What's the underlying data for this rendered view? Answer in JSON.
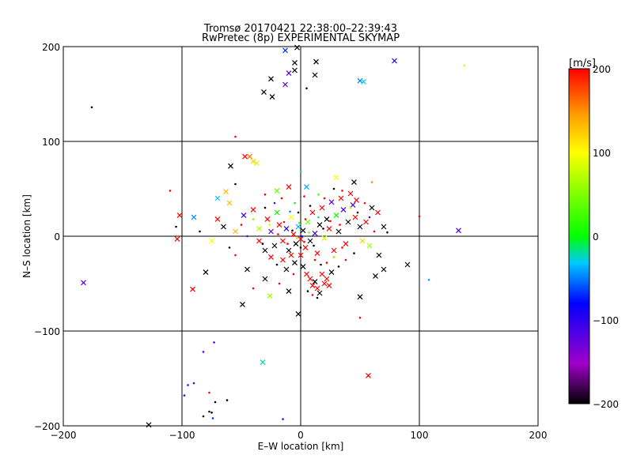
{
  "chart_data": {
    "type": "scatter",
    "title": "Tromsø 20170421 22:38:00–22:39:43",
    "subtitle": "RwPretec (8p) EXPERIMENTAL SKYMAP",
    "xlabel": "E–W location [km]",
    "ylabel": "N–S location [km]",
    "xlim": [
      -200,
      200
    ],
    "ylim": [
      -200,
      200
    ],
    "xticks": [
      -200,
      -100,
      0,
      100,
      200
    ],
    "yticks": [
      -200,
      -100,
      0,
      100,
      200
    ],
    "grid": true,
    "colorbar": {
      "label": "[m/s]",
      "min": -200,
      "max": 200,
      "ticks": [
        200,
        100,
        0,
        -100,
        -200
      ],
      "colormap": [
        "#000000",
        "#a000c8",
        "#0000ff",
        "#00c8ff",
        "#00ff00",
        "#ffff00",
        "#ffa000",
        "#ff0000"
      ]
    },
    "points": [
      {
        "x": 13,
        "y": 184,
        "v": -200,
        "m": "x"
      },
      {
        "x": -3,
        "y": 199,
        "v": -200,
        "m": "x"
      },
      {
        "x": -5,
        "y": 183,
        "v": -200,
        "m": "x"
      },
      {
        "x": -10,
        "y": 172,
        "v": -120,
        "m": "x"
      },
      {
        "x": -5,
        "y": 175,
        "v": -200,
        "m": "x"
      },
      {
        "x": 12,
        "y": 170,
        "v": -200,
        "m": "x"
      },
      {
        "x": -25,
        "y": 166,
        "v": -200,
        "m": "x"
      },
      {
        "x": -13,
        "y": 160,
        "v": -120,
        "m": "x"
      },
      {
        "x": -31,
        "y": 152,
        "v": -200,
        "m": "x"
      },
      {
        "x": -24,
        "y": 147,
        "v": -200,
        "m": "x"
      },
      {
        "x": 5,
        "y": 156,
        "v": -200,
        "m": "d"
      },
      {
        "x": -13,
        "y": 196,
        "v": -70,
        "m": "x"
      },
      {
        "x": 79,
        "y": 185,
        "v": -90,
        "m": "x"
      },
      {
        "x": 50,
        "y": 164,
        "v": -50,
        "m": "x"
      },
      {
        "x": 53,
        "y": 163,
        "v": -30,
        "m": "x"
      },
      {
        "x": 138,
        "y": 180,
        "v": 110,
        "m": "d"
      },
      {
        "x": -176,
        "y": 136,
        "v": -200,
        "m": "d"
      },
      {
        "x": -55,
        "y": 105,
        "v": 200,
        "m": "d"
      },
      {
        "x": -47,
        "y": 84,
        "v": 200,
        "m": "x"
      },
      {
        "x": -43,
        "y": 84,
        "v": 160,
        "m": "x"
      },
      {
        "x": -40,
        "y": 79,
        "v": 120,
        "m": "x"
      },
      {
        "x": -37,
        "y": 77,
        "v": 80,
        "m": "x"
      },
      {
        "x": -59,
        "y": 74,
        "v": -200,
        "m": "x"
      },
      {
        "x": -110,
        "y": 48,
        "v": 200,
        "m": "d"
      },
      {
        "x": -102,
        "y": 22,
        "v": 200,
        "m": "x"
      },
      {
        "x": -104,
        "y": -3,
        "v": 200,
        "m": "x"
      },
      {
        "x": 100,
        "y": 21,
        "v": 200,
        "m": "d"
      },
      {
        "x": 133,
        "y": 6,
        "v": -110,
        "m": "x"
      },
      {
        "x": 90,
        "y": -30,
        "v": -200,
        "m": "x"
      },
      {
        "x": 108,
        "y": -46,
        "v": -40,
        "m": "d"
      },
      {
        "x": -183,
        "y": -49,
        "v": -120,
        "m": "x"
      },
      {
        "x": -91,
        "y": -56,
        "v": 200,
        "m": "x"
      },
      {
        "x": -49,
        "y": -72,
        "v": -200,
        "m": "x"
      },
      {
        "x": -26,
        "y": -63,
        "v": 60,
        "m": "x"
      },
      {
        "x": 50,
        "y": -64,
        "v": -200,
        "m": "x"
      },
      {
        "x": 50,
        "y": -86,
        "v": 200,
        "m": "d"
      },
      {
        "x": -2,
        "y": -82,
        "v": -200,
        "m": "x"
      },
      {
        "x": -32,
        "y": -133,
        "v": -20,
        "m": "x"
      },
      {
        "x": 57,
        "y": -147,
        "v": 200,
        "m": "x"
      },
      {
        "x": -73,
        "y": -112,
        "v": -110,
        "m": "d"
      },
      {
        "x": -82,
        "y": -122,
        "v": -110,
        "m": "d"
      },
      {
        "x": -95,
        "y": -157,
        "v": -110,
        "m": "d"
      },
      {
        "x": -90,
        "y": -155,
        "v": -110,
        "m": "d"
      },
      {
        "x": -98,
        "y": -168,
        "v": -110,
        "m": "d"
      },
      {
        "x": -77,
        "y": -165,
        "v": 200,
        "m": "d"
      },
      {
        "x": -72,
        "y": -175,
        "v": -200,
        "m": "d"
      },
      {
        "x": -62,
        "y": -173,
        "v": -200,
        "m": "d"
      },
      {
        "x": -77,
        "y": -185,
        "v": -200,
        "m": "d"
      },
      {
        "x": -82,
        "y": -190,
        "v": -200,
        "m": "d"
      },
      {
        "x": -74,
        "y": -192,
        "v": -70,
        "m": "d"
      },
      {
        "x": -75,
        "y": -186,
        "v": -200,
        "m": "d"
      },
      {
        "x": -15,
        "y": -193,
        "v": -120,
        "m": "d"
      },
      {
        "x": -128,
        "y": -199,
        "v": -200,
        "m": "x"
      },
      {
        "x": -60,
        "y": 35,
        "v": 130,
        "m": "x"
      },
      {
        "x": -63,
        "y": 47,
        "v": 130,
        "m": "x"
      },
      {
        "x": -70,
        "y": 40,
        "v": -30,
        "m": "x"
      },
      {
        "x": -55,
        "y": 55,
        "v": -200,
        "m": "d"
      },
      {
        "x": -30,
        "y": 44,
        "v": 200,
        "m": "d"
      },
      {
        "x": -20,
        "y": 48,
        "v": 40,
        "m": "x"
      },
      {
        "x": -10,
        "y": 52,
        "v": 200,
        "m": "x"
      },
      {
        "x": 5,
        "y": 52,
        "v": -40,
        "m": "x"
      },
      {
        "x": 30,
        "y": 62,
        "v": 100,
        "m": "x"
      },
      {
        "x": 45,
        "y": 57,
        "v": -200,
        "m": "x"
      },
      {
        "x": 60,
        "y": 57,
        "v": 150,
        "m": "d"
      },
      {
        "x": 47,
        "y": 38,
        "v": 200,
        "m": "x"
      },
      {
        "x": 60,
        "y": 30,
        "v": -200,
        "m": "x"
      },
      {
        "x": 70,
        "y": 10,
        "v": -200,
        "m": "x"
      },
      {
        "x": 65,
        "y": 25,
        "v": 200,
        "m": "x"
      },
      {
        "x": 73,
        "y": 4,
        "v": -200,
        "m": "d"
      },
      {
        "x": 66,
        "y": -20,
        "v": -200,
        "m": "x"
      },
      {
        "x": 58,
        "y": -10,
        "v": 60,
        "m": "x"
      },
      {
        "x": 70,
        "y": -35,
        "v": -200,
        "m": "x"
      },
      {
        "x": 63,
        "y": -42,
        "v": -200,
        "m": "x"
      },
      {
        "x": -105,
        "y": 10,
        "v": -200,
        "m": "d"
      },
      {
        "x": -90,
        "y": 20,
        "v": -50,
        "m": "x"
      },
      {
        "x": -85,
        "y": 5,
        "v": -200,
        "m": "d"
      },
      {
        "x": -75,
        "y": -5,
        "v": 100,
        "m": "x"
      },
      {
        "x": -80,
        "y": -38,
        "v": -200,
        "m": "x"
      },
      {
        "x": -65,
        "y": 10,
        "v": -200,
        "m": "x"
      },
      {
        "x": -70,
        "y": 18,
        "v": 200,
        "m": "x"
      },
      {
        "x": -55,
        "y": -20,
        "v": 200,
        "m": "d"
      },
      {
        "x": -45,
        "y": -35,
        "v": -200,
        "m": "x"
      },
      {
        "x": -48,
        "y": 22,
        "v": -100,
        "m": "x"
      },
      {
        "x": -55,
        "y": 5,
        "v": 130,
        "m": "x"
      },
      {
        "x": -40,
        "y": 28,
        "v": 200,
        "m": "x"
      },
      {
        "x": -35,
        "y": 8,
        "v": 70,
        "m": "x"
      },
      {
        "x": -30,
        "y": 30,
        "v": -200,
        "m": "d"
      },
      {
        "x": -28,
        "y": 18,
        "v": 200,
        "m": "x"
      },
      {
        "x": -25,
        "y": 5,
        "v": -120,
        "m": "x"
      },
      {
        "x": -22,
        "y": -10,
        "v": -200,
        "m": "x"
      },
      {
        "x": -20,
        "y": 25,
        "v": 0,
        "m": "x"
      },
      {
        "x": -18,
        "y": 12,
        "v": 200,
        "m": "x"
      },
      {
        "x": -15,
        "y": -5,
        "v": 200,
        "m": "x"
      },
      {
        "x": -12,
        "y": 8,
        "v": -100,
        "m": "x"
      },
      {
        "x": -10,
        "y": -15,
        "v": -200,
        "m": "x"
      },
      {
        "x": -8,
        "y": 20,
        "v": 100,
        "m": "x"
      },
      {
        "x": -6,
        "y": 2,
        "v": 200,
        "m": "x"
      },
      {
        "x": -4,
        "y": -8,
        "v": -200,
        "m": "x"
      },
      {
        "x": -2,
        "y": 10,
        "v": -40,
        "m": "x"
      },
      {
        "x": 0,
        "y": -3,
        "v": 200,
        "m": "x"
      },
      {
        "x": 2,
        "y": 6,
        "v": -200,
        "m": "x"
      },
      {
        "x": 4,
        "y": -12,
        "v": 200,
        "m": "x"
      },
      {
        "x": 6,
        "y": 15,
        "v": 40,
        "m": "x"
      },
      {
        "x": 8,
        "y": -5,
        "v": -200,
        "m": "x"
      },
      {
        "x": 10,
        "y": 25,
        "v": 200,
        "m": "x"
      },
      {
        "x": 12,
        "y": 3,
        "v": -110,
        "m": "x"
      },
      {
        "x": 14,
        "y": -18,
        "v": 200,
        "m": "x"
      },
      {
        "x": 16,
        "y": 12,
        "v": -200,
        "m": "x"
      },
      {
        "x": 18,
        "y": 30,
        "v": 200,
        "m": "x"
      },
      {
        "x": 20,
        "y": -2,
        "v": 80,
        "m": "x"
      },
      {
        "x": 22,
        "y": 18,
        "v": -200,
        "m": "x"
      },
      {
        "x": 24,
        "y": 8,
        "v": 200,
        "m": "x"
      },
      {
        "x": 26,
        "y": 36,
        "v": -120,
        "m": "x"
      },
      {
        "x": 28,
        "y": -15,
        "v": 200,
        "m": "x"
      },
      {
        "x": 30,
        "y": 22,
        "v": 0,
        "m": "x"
      },
      {
        "x": 32,
        "y": 5,
        "v": -200,
        "m": "x"
      },
      {
        "x": 34,
        "y": 40,
        "v": 200,
        "m": "x"
      },
      {
        "x": 36,
        "y": 28,
        "v": -110,
        "m": "x"
      },
      {
        "x": 38,
        "y": -8,
        "v": 200,
        "m": "x"
      },
      {
        "x": 40,
        "y": 15,
        "v": -200,
        "m": "x"
      },
      {
        "x": 42,
        "y": 45,
        "v": 200,
        "m": "x"
      },
      {
        "x": 44,
        "y": 33,
        "v": -120,
        "m": "x"
      },
      {
        "x": 46,
        "y": 20,
        "v": 200,
        "m": "x"
      },
      {
        "x": 50,
        "y": 10,
        "v": -200,
        "m": "x"
      },
      {
        "x": 52,
        "y": -5,
        "v": 120,
        "m": "x"
      },
      {
        "x": 55,
        "y": 15,
        "v": 200,
        "m": "x"
      },
      {
        "x": -35,
        "y": -5,
        "v": 200,
        "m": "x"
      },
      {
        "x": -30,
        "y": -15,
        "v": -200,
        "m": "x"
      },
      {
        "x": -25,
        "y": -22,
        "v": 200,
        "m": "x"
      },
      {
        "x": -20,
        "y": -30,
        "v": -200,
        "m": "d"
      },
      {
        "x": -15,
        "y": -25,
        "v": 200,
        "m": "x"
      },
      {
        "x": -12,
        "y": -35,
        "v": -200,
        "m": "x"
      },
      {
        "x": -8,
        "y": -20,
        "v": 200,
        "m": "x"
      },
      {
        "x": -5,
        "y": -28,
        "v": -200,
        "m": "x"
      },
      {
        "x": 0,
        "y": -20,
        "v": 200,
        "m": "x"
      },
      {
        "x": 2,
        "y": -32,
        "v": -200,
        "m": "x"
      },
      {
        "x": 5,
        "y": -40,
        "v": 200,
        "m": "x"
      },
      {
        "x": 8,
        "y": -45,
        "v": 200,
        "m": "x"
      },
      {
        "x": 10,
        "y": -52,
        "v": 200,
        "m": "x"
      },
      {
        "x": 12,
        "y": -48,
        "v": -200,
        "m": "x"
      },
      {
        "x": 14,
        "y": -55,
        "v": 200,
        "m": "x"
      },
      {
        "x": 16,
        "y": -60,
        "v": -200,
        "m": "x"
      },
      {
        "x": 18,
        "y": -40,
        "v": 200,
        "m": "x"
      },
      {
        "x": 20,
        "y": -50,
        "v": 200,
        "m": "x"
      },
      {
        "x": 22,
        "y": -45,
        "v": 200,
        "m": "x"
      },
      {
        "x": 24,
        "y": -52,
        "v": 200,
        "m": "x"
      },
      {
        "x": 26,
        "y": -38,
        "v": -200,
        "m": "x"
      },
      {
        "x": 6,
        "y": -58,
        "v": -200,
        "m": "d"
      },
      {
        "x": 10,
        "y": -62,
        "v": 200,
        "m": "d"
      },
      {
        "x": 14,
        "y": -65,
        "v": -200,
        "m": "d"
      },
      {
        "x": -10,
        "y": -58,
        "v": -200,
        "m": "x"
      },
      {
        "x": -18,
        "y": -50,
        "v": 200,
        "m": "d"
      },
      {
        "x": -30,
        "y": -45,
        "v": -200,
        "m": "x"
      },
      {
        "x": -40,
        "y": -55,
        "v": 200,
        "m": "d"
      },
      {
        "x": -45,
        "y": 0,
        "v": -70,
        "m": "d"
      },
      {
        "x": -50,
        "y": 12,
        "v": 200,
        "m": "d"
      },
      {
        "x": -60,
        "y": -12,
        "v": -200,
        "m": "d"
      },
      {
        "x": -40,
        "y": 18,
        "v": 50,
        "m": "d"
      },
      {
        "x": -22,
        "y": 35,
        "v": -110,
        "m": "d"
      },
      {
        "x": -16,
        "y": 40,
        "v": 200,
        "m": "d"
      },
      {
        "x": -5,
        "y": 35,
        "v": 0,
        "m": "d"
      },
      {
        "x": 3,
        "y": 42,
        "v": 200,
        "m": "d"
      },
      {
        "x": 8,
        "y": 32,
        "v": -200,
        "m": "d"
      },
      {
        "x": 15,
        "y": 44,
        "v": 30,
        "m": "d"
      },
      {
        "x": 20,
        "y": 40,
        "v": 200,
        "m": "d"
      },
      {
        "x": 28,
        "y": 50,
        "v": -200,
        "m": "d"
      },
      {
        "x": 35,
        "y": 48,
        "v": 200,
        "m": "d"
      },
      {
        "x": 42,
        "y": 30,
        "v": 60,
        "m": "d"
      },
      {
        "x": 48,
        "y": 25,
        "v": -200,
        "m": "d"
      },
      {
        "x": 54,
        "y": 35,
        "v": 200,
        "m": "d"
      },
      {
        "x": 58,
        "y": 20,
        "v": -110,
        "m": "d"
      },
      {
        "x": 62,
        "y": 5,
        "v": 200,
        "m": "d"
      },
      {
        "x": 45,
        "y": -18,
        "v": -200,
        "m": "d"
      },
      {
        "x": 38,
        "y": -25,
        "v": 200,
        "m": "d"
      },
      {
        "x": 32,
        "y": -32,
        "v": -200,
        "m": "d"
      },
      {
        "x": 28,
        "y": -22,
        "v": 40,
        "m": "d"
      },
      {
        "x": 35,
        "y": -12,
        "v": 200,
        "m": "d"
      },
      {
        "x": -2,
        "y": 25,
        "v": -200,
        "m": "d"
      },
      {
        "x": -1,
        "y": 14,
        "v": 20,
        "m": "d"
      },
      {
        "x": 1,
        "y": 0,
        "v": -80,
        "m": "d"
      },
      {
        "x": -3,
        "y": -2,
        "v": 130,
        "m": "d"
      },
      {
        "x": 3,
        "y": -6,
        "v": 200,
        "m": "d"
      },
      {
        "x": -7,
        "y": 6,
        "v": -200,
        "m": "d"
      },
      {
        "x": 7,
        "y": 4,
        "v": 50,
        "m": "d"
      },
      {
        "x": -11,
        "y": -8,
        "v": 200,
        "m": "d"
      },
      {
        "x": 11,
        "y": -10,
        "v": -200,
        "m": "d"
      },
      {
        "x": -14,
        "y": 15,
        "v": 200,
        "m": "d"
      },
      {
        "x": 15,
        "y": 20,
        "v": -20,
        "m": "d"
      },
      {
        "x": -19,
        "y": 2,
        "v": 200,
        "m": "d"
      },
      {
        "x": 19,
        "y": 8,
        "v": -200,
        "m": "d"
      },
      {
        "x": -26,
        "y": 12,
        "v": 90,
        "m": "d"
      },
      {
        "x": 25,
        "y": 16,
        "v": 200,
        "m": "d"
      },
      {
        "x": -32,
        "y": -8,
        "v": -200,
        "m": "d"
      },
      {
        "x": 33,
        "y": 12,
        "v": 200,
        "m": "d"
      },
      {
        "x": 0,
        "y": -12,
        "v": -200,
        "m": "d"
      },
      {
        "x": 4,
        "y": 18,
        "v": 200,
        "m": "d"
      },
      {
        "x": -9,
        "y": 26,
        "v": -50,
        "m": "d"
      },
      {
        "x": 12,
        "y": -25,
        "v": 200,
        "m": "d"
      },
      {
        "x": 17,
        "y": -30,
        "v": -200,
        "m": "d"
      },
      {
        "x": 22,
        "y": -28,
        "v": 200,
        "m": "d"
      },
      {
        "x": -6,
        "y": -40,
        "v": 200,
        "m": "d"
      },
      {
        "x": 0,
        "y": 68,
        "v": -20,
        "m": "d"
      }
    ]
  }
}
